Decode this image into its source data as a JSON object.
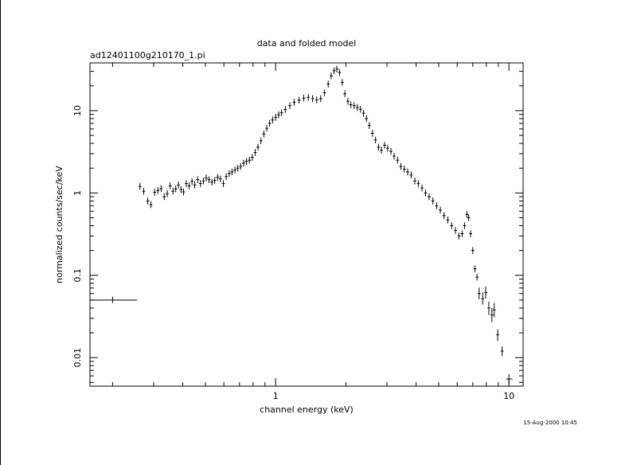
{
  "chart_data": {
    "type": "scatter",
    "title": "data and folded model",
    "subtitle": "ad12401100g210170_1.pi",
    "xlabel": "channel energy (keV)",
    "ylabel": "normalized counts/sec/keV",
    "timestamp": "15-Aug-2000 10:45",
    "x_scale": "log",
    "y_scale": "log",
    "xlim": [
      0.16,
      11.5
    ],
    "ylim": [
      0.0045,
      38
    ],
    "x_ticks": [
      {
        "value": 1,
        "label": "1"
      },
      {
        "value": 10,
        "label": "10"
      }
    ],
    "y_ticks": [
      {
        "value": 0.01,
        "label": "0.01"
      },
      {
        "value": 0.1,
        "label": "0.1"
      },
      {
        "value": 1,
        "label": "1"
      },
      {
        "value": 10,
        "label": "10"
      }
    ],
    "grid": false,
    "series": [
      {
        "style": "crosses-with-error-bars",
        "points": [
          {
            "x": 0.2,
            "xlo": 0.16,
            "xhi": 0.255,
            "y": 0.05,
            "ylo": 0.046,
            "yhi": 0.055
          },
          {
            "x": 0.262,
            "y": 1.2
          },
          {
            "x": 0.272,
            "y": 1.05
          },
          {
            "x": 0.283,
            "y": 0.8
          },
          {
            "x": 0.292,
            "y": 0.72
          },
          {
            "x": 0.303,
            "y": 1.02
          },
          {
            "x": 0.313,
            "y": 1.07
          },
          {
            "x": 0.323,
            "y": 1.13
          },
          {
            "x": 0.333,
            "y": 0.9
          },
          {
            "x": 0.343,
            "y": 0.98
          },
          {
            "x": 0.353,
            "y": 1.22
          },
          {
            "x": 0.363,
            "y": 1.05
          },
          {
            "x": 0.373,
            "y": 1.12
          },
          {
            "x": 0.383,
            "y": 1.25
          },
          {
            "x": 0.393,
            "y": 1.1
          },
          {
            "x": 0.403,
            "y": 1.03
          },
          {
            "x": 0.414,
            "y": 1.3
          },
          {
            "x": 0.426,
            "y": 1.22
          },
          {
            "x": 0.438,
            "y": 1.38
          },
          {
            "x": 0.45,
            "y": 1.25
          },
          {
            "x": 0.463,
            "y": 1.45
          },
          {
            "x": 0.476,
            "y": 1.3
          },
          {
            "x": 0.49,
            "y": 1.4
          },
          {
            "x": 0.504,
            "y": 1.52
          },
          {
            "x": 0.518,
            "y": 1.45
          },
          {
            "x": 0.533,
            "y": 1.35
          },
          {
            "x": 0.548,
            "y": 1.42
          },
          {
            "x": 0.564,
            "y": 1.55
          },
          {
            "x": 0.58,
            "y": 1.48
          },
          {
            "x": 0.597,
            "y": 1.3
          },
          {
            "x": 0.614,
            "y": 1.58
          },
          {
            "x": 0.632,
            "y": 1.72
          },
          {
            "x": 0.65,
            "y": 1.8
          },
          {
            "x": 0.669,
            "y": 1.9
          },
          {
            "x": 0.688,
            "y": 2.0
          },
          {
            "x": 0.708,
            "y": 2.1
          },
          {
            "x": 0.729,
            "y": 2.3
          },
          {
            "x": 0.75,
            "y": 2.42
          },
          {
            "x": 0.772,
            "y": 2.5
          },
          {
            "x": 0.794,
            "y": 2.7
          },
          {
            "x": 0.817,
            "y": 3.1
          },
          {
            "x": 0.84,
            "y": 3.6
          },
          {
            "x": 0.865,
            "y": 4.3
          },
          {
            "x": 0.89,
            "y": 5.2
          },
          {
            "x": 0.916,
            "y": 6.1
          },
          {
            "x": 0.942,
            "y": 7.0
          },
          {
            "x": 0.97,
            "y": 7.7
          },
          {
            "x": 1.0,
            "y": 8.3
          },
          {
            "x": 1.03,
            "y": 8.9
          },
          {
            "x": 1.06,
            "y": 9.4
          },
          {
            "x": 1.1,
            "y": 10.3
          },
          {
            "x": 1.15,
            "y": 11.5
          },
          {
            "x": 1.2,
            "y": 12.6
          },
          {
            "x": 1.26,
            "y": 13.4
          },
          {
            "x": 1.32,
            "y": 14.2
          },
          {
            "x": 1.38,
            "y": 14.5
          },
          {
            "x": 1.44,
            "y": 14.0
          },
          {
            "x": 1.5,
            "y": 13.5
          },
          {
            "x": 1.56,
            "y": 14.0
          },
          {
            "x": 1.62,
            "y": 16.5
          },
          {
            "x": 1.68,
            "y": 21.0
          },
          {
            "x": 1.73,
            "y": 26.5
          },
          {
            "x": 1.78,
            "y": 30.5
          },
          {
            "x": 1.83,
            "y": 32.0
          },
          {
            "x": 1.88,
            "y": 29.0
          },
          {
            "x": 1.93,
            "y": 22.0
          },
          {
            "x": 1.98,
            "y": 16.0
          },
          {
            "x": 2.04,
            "y": 13.0
          },
          {
            "x": 2.1,
            "y": 11.8
          },
          {
            "x": 2.17,
            "y": 11.5
          },
          {
            "x": 2.24,
            "y": 10.9
          },
          {
            "x": 2.31,
            "y": 10.4
          },
          {
            "x": 2.38,
            "y": 9.3
          },
          {
            "x": 2.45,
            "y": 8.0
          },
          {
            "x": 2.52,
            "y": 6.6
          },
          {
            "x": 2.6,
            "y": 5.3
          },
          {
            "x": 2.68,
            "y": 4.4
          },
          {
            "x": 2.76,
            "y": 3.6
          },
          {
            "x": 2.84,
            "y": 3.3
          },
          {
            "x": 2.93,
            "y": 3.8
          },
          {
            "x": 3.02,
            "y": 3.5
          },
          {
            "x": 3.12,
            "y": 3.2
          },
          {
            "x": 3.22,
            "y": 2.8
          },
          {
            "x": 3.33,
            "y": 2.5
          },
          {
            "x": 3.44,
            "y": 2.1
          },
          {
            "x": 3.56,
            "y": 1.95
          },
          {
            "x": 3.68,
            "y": 1.8
          },
          {
            "x": 3.81,
            "y": 1.65
          },
          {
            "x": 3.95,
            "y": 1.4
          },
          {
            "x": 4.09,
            "y": 1.3
          },
          {
            "x": 4.24,
            "y": 1.15
          },
          {
            "x": 4.39,
            "y": 1.0
          },
          {
            "x": 4.55,
            "y": 0.9
          },
          {
            "x": 4.72,
            "y": 0.8
          },
          {
            "x": 4.9,
            "y": 0.7
          },
          {
            "x": 5.08,
            "y": 0.62
          },
          {
            "x": 5.27,
            "y": 0.53
          },
          {
            "x": 5.47,
            "y": 0.47
          },
          {
            "x": 5.68,
            "y": 0.4
          },
          {
            "x": 5.9,
            "y": 0.35
          },
          {
            "x": 6.1,
            "y": 0.3
          },
          {
            "x": 6.3,
            "y": 0.32
          },
          {
            "x": 6.45,
            "y": 0.4
          },
          {
            "x": 6.6,
            "y": 0.55
          },
          {
            "x": 6.72,
            "y": 0.5
          },
          {
            "x": 6.85,
            "y": 0.32
          },
          {
            "x": 7.0,
            "y": 0.2
          },
          {
            "x": 7.15,
            "y": 0.12
          },
          {
            "x": 7.3,
            "y": 0.095
          },
          {
            "x": 7.45,
            "y": 0.06,
            "ylo": 0.051,
            "yhi": 0.071
          },
          {
            "x": 7.72,
            "y": 0.052,
            "ylo": 0.044,
            "yhi": 0.062
          },
          {
            "x": 7.95,
            "y": 0.062,
            "ylo": 0.052,
            "yhi": 0.073
          },
          {
            "x": 8.2,
            "y": 0.04,
            "ylo": 0.033,
            "yhi": 0.048
          },
          {
            "x": 8.45,
            "y": 0.033,
            "ylo": 0.027,
            "yhi": 0.04
          },
          {
            "x": 8.65,
            "y": 0.038,
            "ylo": 0.031,
            "yhi": 0.046
          },
          {
            "x": 8.95,
            "y": 0.019,
            "ylo": 0.016,
            "yhi": 0.022
          },
          {
            "x": 9.35,
            "y": 0.012,
            "ylo": 0.0104,
            "yhi": 0.0137
          },
          {
            "x": 10.0,
            "xlo": 9.72,
            "xhi": 10.35,
            "y": 0.0055,
            "ylo": 0.0048,
            "yhi": 0.0063
          }
        ]
      }
    ]
  }
}
